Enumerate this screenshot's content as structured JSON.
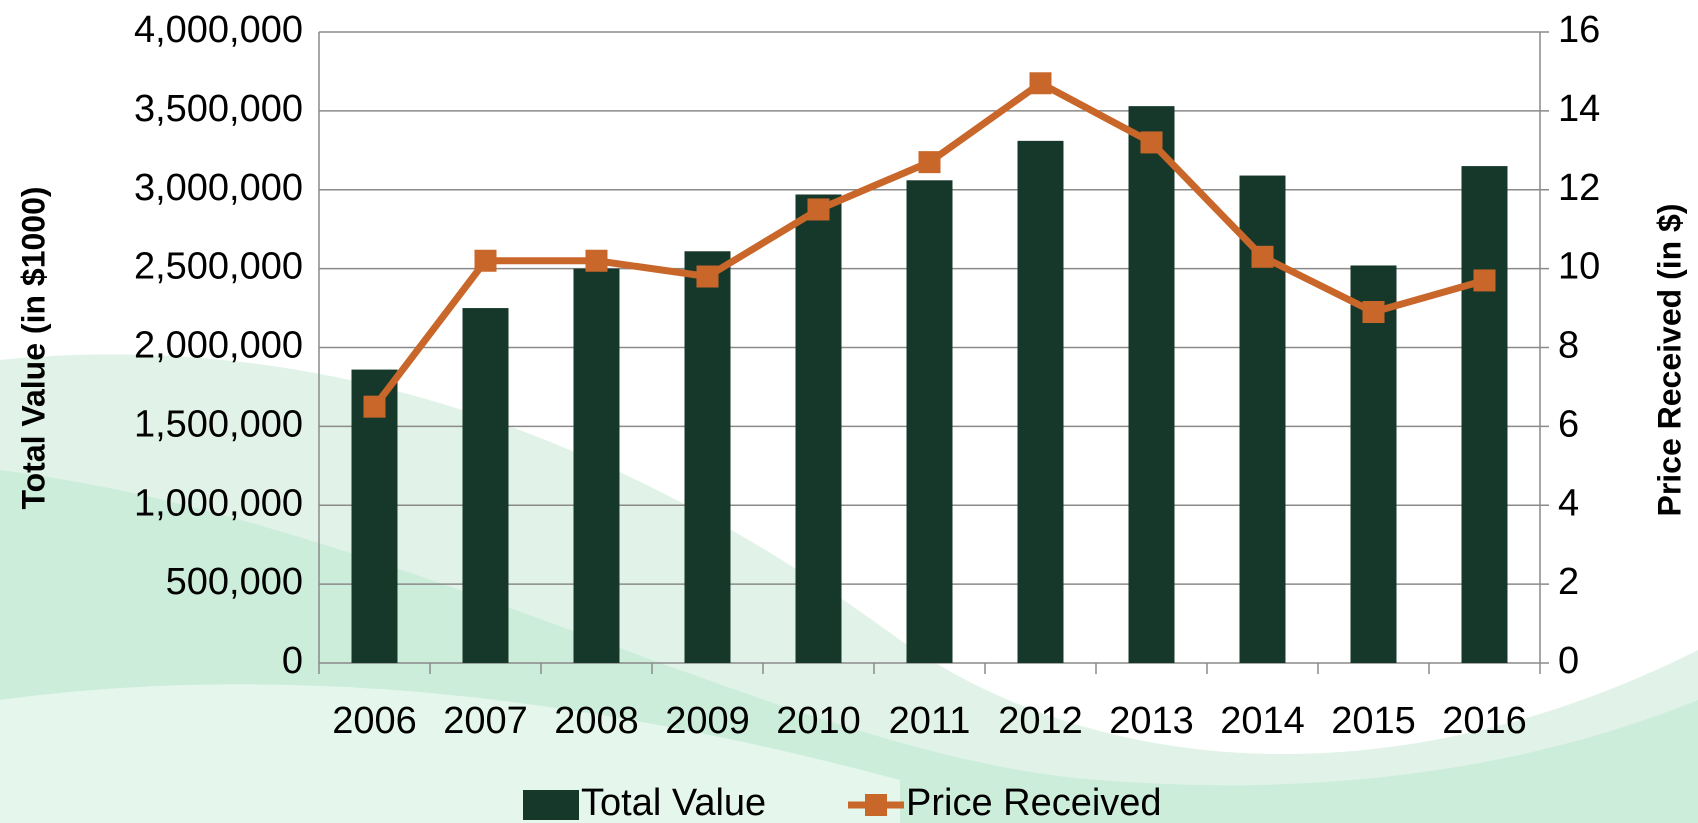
{
  "chart_data": {
    "type": "bar-line",
    "categories": [
      "2006",
      "2007",
      "2008",
      "2009",
      "2010",
      "2011",
      "2012",
      "2013",
      "2014",
      "2015",
      "2016"
    ],
    "y_label": "Total Value (in $1000)",
    "y2_label": "Price Received (in $)",
    "series": [
      {
        "name": "Total Value",
        "type": "bar",
        "color": "#16382a",
        "values": [
          1860000,
          2250000,
          2500000,
          2610000,
          2970000,
          3060000,
          3310000,
          3530000,
          3090000,
          2520000,
          3150000
        ]
      },
      {
        "name": "Price Received",
        "type": "line",
        "axis": "y2",
        "color": "#c9662a",
        "values": [
          6.5,
          10.2,
          10.2,
          9.8,
          11.5,
          12.7,
          14.7,
          13.2,
          10.3,
          8.9,
          9.7
        ]
      }
    ],
    "ylim": [
      0,
      4000000
    ],
    "yticks": [
      0,
      {
        "value": 500000,
        "label": "500,000"
      },
      {
        "value": 1000000,
        "label": "1,000,000"
      },
      {
        "value": 1500000,
        "label": "1,500,000"
      },
      {
        "value": 2000000,
        "label": "2,000,000"
      },
      {
        "value": 2500000,
        "label": "2,500,000"
      },
      {
        "value": 3000000,
        "label": "3,000,000"
      },
      {
        "value": 3500000,
        "label": "3,500,000"
      },
      {
        "value": 4000000,
        "label": "4,000,000"
      }
    ],
    "y2lim": [
      0,
      16
    ],
    "y2ticks": [
      0,
      2,
      4,
      6,
      8,
      10,
      12,
      14,
      16
    ],
    "grid": true,
    "legend": "bottom"
  }
}
